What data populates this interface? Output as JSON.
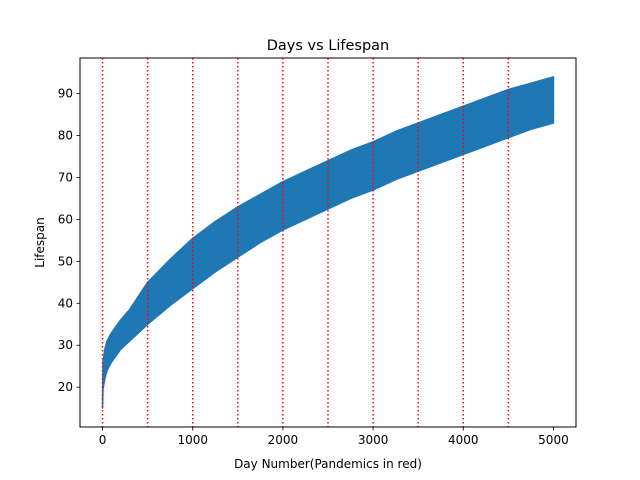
{
  "chart_data": {
    "type": "line",
    "title": "Days vs Lifespan",
    "xlabel": "Day Number(Pandemics in red)",
    "ylabel": "Lifespan",
    "xlim": [
      -250,
      5250
    ],
    "ylim": [
      10.5,
      98.5
    ],
    "x_ticks": [
      0,
      1000,
      2000,
      3000,
      4000,
      5000
    ],
    "y_ticks": [
      20,
      30,
      40,
      50,
      60,
      70,
      80,
      90
    ],
    "grid": false,
    "legend": "none",
    "series": [
      {
        "color": "#1f77b4",
        "x": [
          0,
          5,
          25,
          50,
          100,
          200,
          300,
          500,
          750,
          1000,
          1250,
          1500,
          1750,
          2000,
          2250,
          2500,
          2750,
          3000,
          3250,
          3500,
          3750,
          4000,
          4250,
          4500,
          4750,
          5000
        ],
        "lower": [
          15,
          19.5,
          22,
          24,
          26,
          29,
          31,
          35,
          39.5,
          43.5,
          47.5,
          51,
          54.5,
          57.5,
          60,
          62.5,
          65,
          67,
          69.5,
          71.5,
          73.5,
          75.5,
          77.5,
          79.5,
          81.5,
          83
        ],
        "upper": [
          18,
          26,
          29,
          31,
          33,
          36,
          38.5,
          45,
          50.5,
          55.5,
          59.5,
          63,
          66,
          69,
          71.5,
          74,
          76.5,
          78.5,
          81,
          83,
          85,
          87,
          89,
          91,
          92.5,
          94
        ]
      }
    ],
    "vlines": {
      "color": "#ff0000",
      "style": "dotted",
      "x": [
        0,
        500,
        1000,
        1500,
        2000,
        2500,
        3000,
        3500,
        4000,
        4500
      ]
    }
  }
}
